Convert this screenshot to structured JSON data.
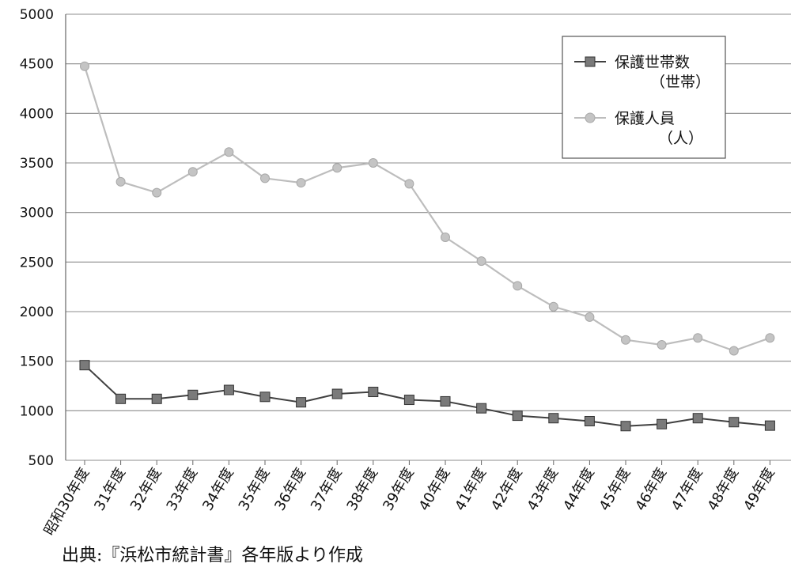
{
  "chart_data": {
    "type": "line",
    "categories": [
      "昭和30年度",
      "31年度",
      "32年度",
      "33年度",
      "34年度",
      "35年度",
      "36年度",
      "37年度",
      "38年度",
      "39年度",
      "40年度",
      "41年度",
      "42年度",
      "43年度",
      "44年度",
      "45年度",
      "46年度",
      "47年度",
      "48年度",
      "49年度"
    ],
    "yticks": [
      "500",
      "1000",
      "1500",
      "2000",
      "2500",
      "3000",
      "3500",
      "4000",
      "4500",
      "5000"
    ],
    "ylim": [
      500,
      5000
    ],
    "grid": true,
    "legend_position": "top-right",
    "series": [
      {
        "name_line1": "保護世帯数",
        "name_line2": "（世帯）",
        "color": "#404040",
        "marker": "square",
        "values": [
          1460,
          1120,
          1120,
          1160,
          1210,
          1140,
          1085,
          1170,
          1190,
          1110,
          1095,
          1025,
          950,
          925,
          895,
          845,
          865,
          925,
          885,
          850
        ]
      },
      {
        "name_line1": "保護人員",
        "name_line2": "（人）",
        "color": "#bdbdbd",
        "marker": "circle",
        "values": [
          4475,
          3310,
          3200,
          3410,
          3610,
          3345,
          3300,
          3450,
          3500,
          3290,
          2750,
          2510,
          2260,
          2050,
          1945,
          1715,
          1665,
          1735,
          1605,
          1735
        ]
      }
    ]
  },
  "footer": {
    "source": "出典:『浜松市統計書』各年版より作成"
  }
}
